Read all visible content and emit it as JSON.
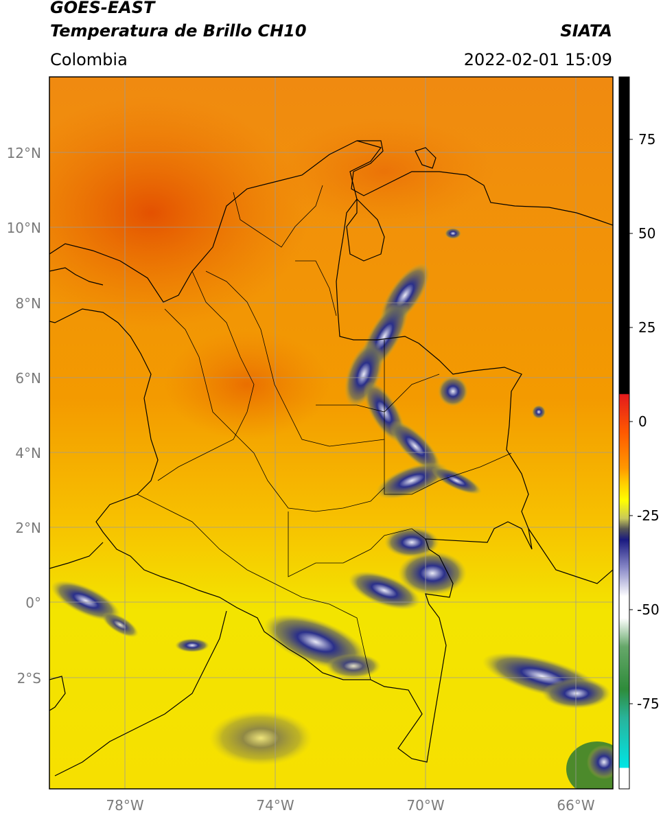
{
  "header": {
    "title_line1": "GOES-EAST",
    "title_line2": "Temperatura de Brillo CH10",
    "agency": "SIATA",
    "region": "Colombia",
    "datetime": "2022-02-01 15:09"
  },
  "map": {
    "lat_labels": [
      "12°N",
      "10°N",
      "8°N",
      "6°N",
      "4°N",
      "2°N",
      "0°",
      "2°S"
    ],
    "lon_labels": [
      "78°W",
      "74°W",
      "70°W",
      "66°W"
    ],
    "grid": true,
    "colors": {
      "warm_orange": "#f28b00",
      "hot_red": "#e85a00",
      "yellow": "#f5e600",
      "cold_navy": "#1b1f7a",
      "border_line": "#000000",
      "gridline": "#9a9a9a"
    }
  },
  "colorbar": {
    "tick_labels": [
      "75",
      "50",
      "25",
      "0",
      "-25",
      "-50",
      "-75"
    ],
    "colors": [
      "#000000",
      "#e41a1c",
      "#ff8c00",
      "#ffff00",
      "#1a1a80",
      "#ffffff",
      "#2e8b3a",
      "#00e5e5",
      "#ffffff"
    ]
  }
}
